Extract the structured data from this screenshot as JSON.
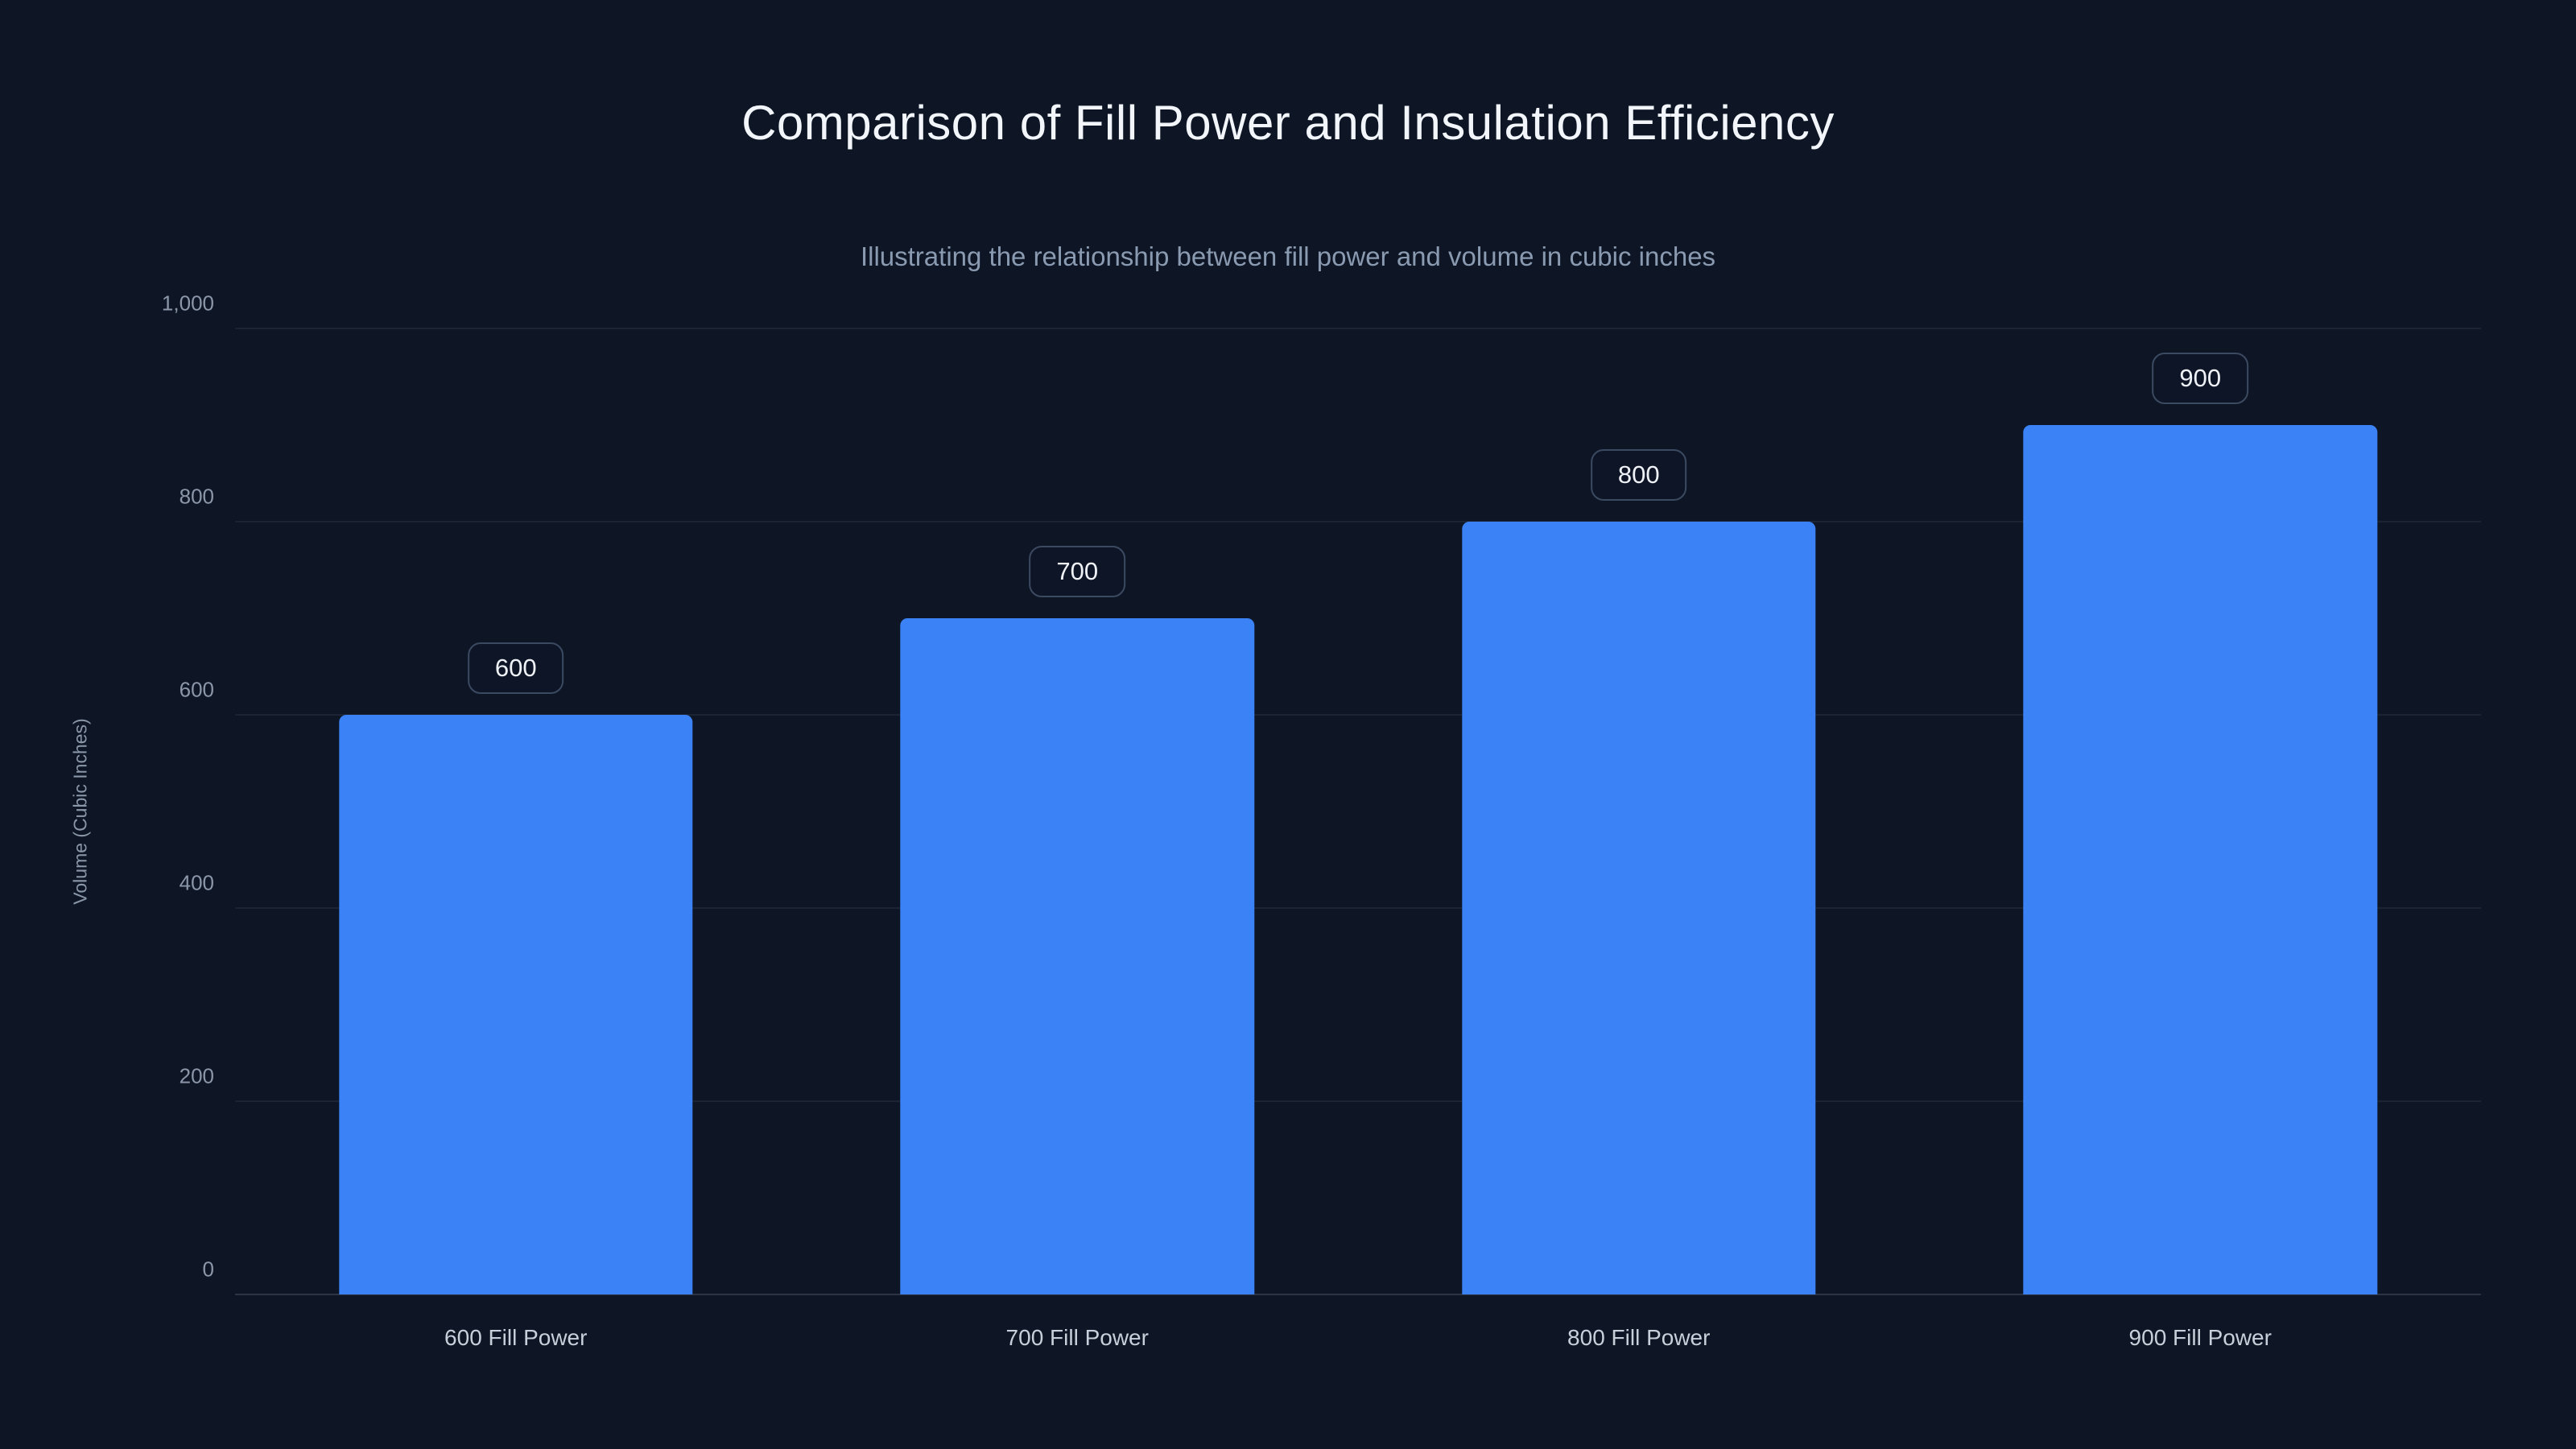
{
  "chart_data": {
    "type": "bar",
    "title": "Comparison of Fill Power and Insulation Efficiency",
    "subtitle": "Illustrating the relationship between fill power and volume in cubic inches",
    "categories": [
      "600 Fill Power",
      "700 Fill Power",
      "800 Fill Power",
      "900 Fill Power"
    ],
    "values": [
      600,
      700,
      800,
      900
    ],
    "value_labels": [
      "600",
      "700",
      "800",
      "900"
    ],
    "xlabel": "",
    "ylabel": "Volume (Cubic Inches)",
    "ylim": [
      0,
      1000
    ],
    "yticks": [
      0,
      200,
      400,
      600,
      800,
      1000
    ],
    "ytick_labels": [
      "0",
      "200",
      "400",
      "600",
      "800",
      "1,000"
    ],
    "grid": true,
    "legend": false,
    "colors": {
      "background": "#0e1626",
      "bar": "#3b82f6",
      "title_text": "#f2f6fb",
      "subtitle_text": "#8a9ab0",
      "tick_text": "#8b97a9",
      "grid_line": "rgba(148,163,184,0.10)"
    }
  }
}
